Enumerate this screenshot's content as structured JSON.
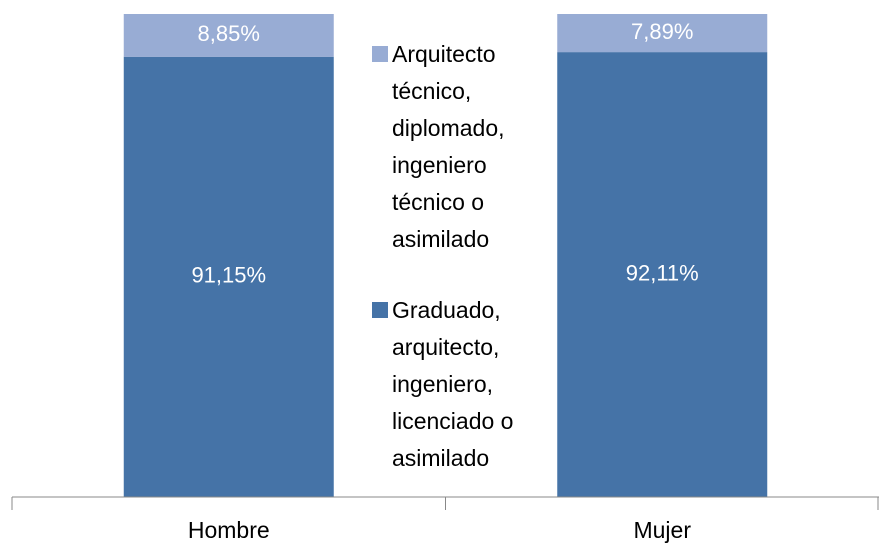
{
  "chart_data": {
    "type": "stacked_bar",
    "categories": [
      "Hombre",
      "Mujer"
    ],
    "ylim": [
      0,
      100
    ],
    "series": [
      {
        "name": "Graduado, arquitecto, ingeniero, licenciado o asimilado",
        "color": "#4573a7",
        "values": [
          91.15,
          92.11
        ],
        "value_labels": [
          "91,15%",
          "92,11%"
        ]
      },
      {
        "name": "Arquitecto técnico, diplomado, ingeniero técnico o asimilado",
        "color": "#98acd4",
        "values": [
          8.85,
          7.89
        ],
        "value_labels": [
          "8,85%",
          "7,89%"
        ]
      }
    ]
  }
}
